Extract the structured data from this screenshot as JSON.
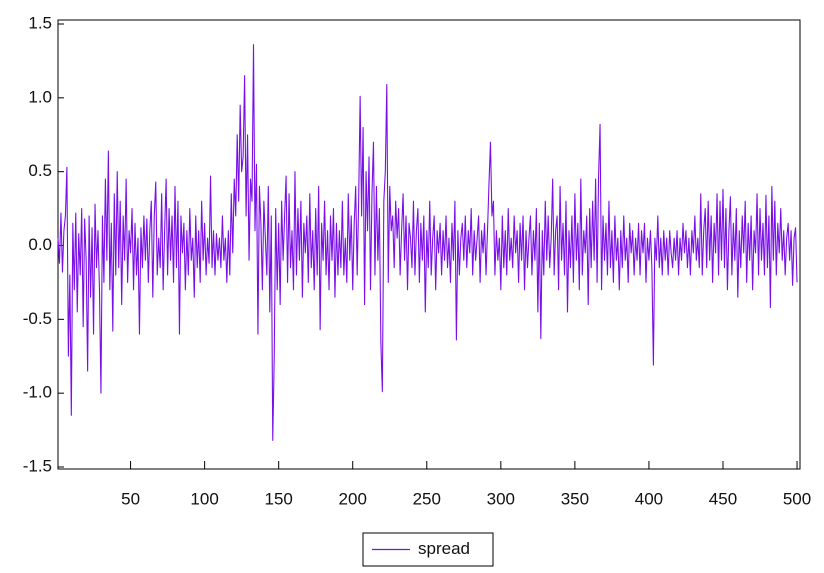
{
  "chart_data": {
    "type": "line",
    "x": [
      1,
      2,
      3,
      4,
      5,
      6,
      7,
      8,
      9,
      10,
      11,
      12,
      13,
      14,
      15,
      16,
      17,
      18,
      19,
      20,
      21,
      22,
      23,
      24,
      25,
      26,
      27,
      28,
      29,
      30,
      31,
      32,
      33,
      34,
      35,
      36,
      37,
      38,
      39,
      40,
      41,
      42,
      43,
      44,
      45,
      46,
      47,
      48,
      49,
      50,
      51,
      52,
      53,
      54,
      55,
      56,
      57,
      58,
      59,
      60,
      61,
      62,
      63,
      64,
      65,
      66,
      67,
      68,
      69,
      70,
      71,
      72,
      73,
      74,
      75,
      76,
      77,
      78,
      79,
      80,
      81,
      82,
      83,
      84,
      85,
      86,
      87,
      88,
      89,
      90,
      91,
      92,
      93,
      94,
      95,
      96,
      97,
      98,
      99,
      100,
      101,
      102,
      103,
      104,
      105,
      106,
      107,
      108,
      109,
      110,
      111,
      112,
      113,
      114,
      115,
      116,
      117,
      118,
      119,
      120,
      121,
      122,
      123,
      124,
      125,
      126,
      127,
      128,
      129,
      130,
      131,
      132,
      133,
      134,
      135,
      136,
      137,
      138,
      139,
      140,
      141,
      142,
      143,
      144,
      145,
      146,
      147,
      148,
      149,
      150,
      151,
      152,
      153,
      154,
      155,
      156,
      157,
      158,
      159,
      160,
      161,
      162,
      163,
      164,
      165,
      166,
      167,
      168,
      169,
      170,
      171,
      172,
      173,
      174,
      175,
      176,
      177,
      178,
      179,
      180,
      181,
      182,
      183,
      184,
      185,
      186,
      187,
      188,
      189,
      190,
      191,
      192,
      193,
      194,
      195,
      196,
      197,
      198,
      199,
      200,
      201,
      202,
      203,
      204,
      205,
      206,
      207,
      208,
      209,
      210,
      211,
      212,
      213,
      214,
      215,
      216,
      217,
      218,
      219,
      220,
      221,
      222,
      223,
      224,
      225,
      226,
      227,
      228,
      229,
      230,
      231,
      232,
      233,
      234,
      235,
      236,
      237,
      238,
      239,
      240,
      241,
      242,
      243,
      244,
      245,
      246,
      247,
      248,
      249,
      250,
      251,
      252,
      253,
      254,
      255,
      256,
      257,
      258,
      259,
      260,
      261,
      262,
      263,
      264,
      265,
      266,
      267,
      268,
      269,
      270,
      271,
      272,
      273,
      274,
      275,
      276,
      277,
      278,
      279,
      280,
      281,
      282,
      283,
      284,
      285,
      286,
      287,
      288,
      289,
      290,
      291,
      292,
      293,
      294,
      295,
      296,
      297,
      298,
      299,
      300,
      301,
      302,
      303,
      304,
      305,
      306,
      307,
      308,
      309,
      310,
      311,
      312,
      313,
      314,
      315,
      316,
      317,
      318,
      319,
      320,
      321,
      322,
      323,
      324,
      325,
      326,
      327,
      328,
      329,
      330,
      331,
      332,
      333,
      334,
      335,
      336,
      337,
      338,
      339,
      340,
      341,
      342,
      343,
      344,
      345,
      346,
      347,
      348,
      349,
      350,
      351,
      352,
      353,
      354,
      355,
      356,
      357,
      358,
      359,
      360,
      361,
      362,
      363,
      364,
      365,
      366,
      367,
      368,
      369,
      370,
      371,
      372,
      373,
      374,
      375,
      376,
      377,
      378,
      379,
      380,
      381,
      382,
      383,
      384,
      385,
      386,
      387,
      388,
      389,
      390,
      391,
      392,
      393,
      394,
      395,
      396,
      397,
      398,
      399,
      400,
      401,
      402,
      403,
      404,
      405,
      406,
      407,
      408,
      409,
      410,
      411,
      412,
      413,
      414,
      415,
      416,
      417,
      418,
      419,
      420,
      421,
      422,
      423,
      424,
      425,
      426,
      427,
      428,
      429,
      430,
      431,
      432,
      433,
      434,
      435,
      436,
      437,
      438,
      439,
      440,
      441,
      442,
      443,
      444,
      445,
      446,
      447,
      448,
      449,
      450,
      451,
      452,
      453,
      454,
      455,
      456,
      457,
      458,
      459,
      460,
      461,
      462,
      463,
      464,
      465,
      466,
      467,
      468,
      469,
      470,
      471,
      472,
      473,
      474,
      475,
      476,
      477,
      478,
      479,
      480,
      481,
      482,
      483,
      484,
      485,
      486,
      487,
      488,
      489,
      490,
      491,
      492,
      493,
      494,
      495,
      496,
      497,
      498,
      499,
      500
    ],
    "series": [
      {
        "name": "spread",
        "color": "#7a10e8",
        "values": [
          0.05,
          -0.12,
          0.22,
          -0.18,
          0.1,
          0.2,
          0.53,
          -0.75,
          -0.2,
          -1.15,
          0.15,
          -0.3,
          0.22,
          -0.45,
          0.08,
          -0.2,
          0.25,
          -0.55,
          0.18,
          -0.1,
          -0.85,
          0.2,
          -0.35,
          0.12,
          -0.6,
          0.28,
          -0.15,
          0.1,
          -0.3,
          -1.0,
          0.2,
          -0.25,
          0.45,
          -0.1,
          0.64,
          -0.3,
          0.15,
          -0.58,
          0.35,
          -0.2,
          0.5,
          -0.15,
          0.3,
          -0.4,
          0.2,
          -0.1,
          0.45,
          -0.25,
          0.1,
          -0.05,
          0.25,
          -0.3,
          0.15,
          -0.2,
          0.05,
          -0.6,
          0.12,
          -0.15,
          0.2,
          -0.1,
          0.18,
          -0.25,
          0.1,
          0.3,
          -0.35,
          0.2,
          0.43,
          -0.2,
          0.05,
          -0.15,
          0.35,
          -0.3,
          0.1,
          0.45,
          -0.2,
          0.25,
          -0.1,
          0.2,
          -0.25,
          0.4,
          -0.15,
          0.3,
          -0.6,
          0.2,
          -0.05,
          0.15,
          -0.3,
          0.1,
          -0.2,
          0.25,
          -0.1,
          0.05,
          -0.35,
          0.2,
          -0.15,
          0.1,
          -0.25,
          0.3,
          -0.1,
          0.15,
          -0.2,
          0.05,
          -0.12,
          0.47,
          -0.15,
          0.1,
          -0.2,
          0.08,
          -0.1,
          0.05,
          -0.15,
          0.2,
          -0.1,
          0.05,
          -0.25,
          0.1,
          -0.2,
          0.35,
          -0.05,
          0.45,
          0.2,
          0.75,
          0.3,
          0.95,
          0.5,
          0.6,
          1.15,
          0.2,
          0.75,
          -0.1,
          0.45,
          0.3,
          1.36,
          0.1,
          0.55,
          -0.6,
          0.4,
          0.15,
          -0.3,
          0.3,
          0.05,
          -0.2,
          0.4,
          -0.45,
          0.2,
          -1.32,
          -0.75,
          0.25,
          -0.3,
          0.15,
          -0.4,
          0.3,
          -0.1,
          0.2,
          0.47,
          -0.25,
          0.35,
          -0.15,
          0.1,
          -0.3,
          0.5,
          -0.2,
          0.25,
          -0.1,
          0.3,
          -0.35,
          0.15,
          -0.05,
          0.2,
          -0.25,
          0.35,
          -0.15,
          0.1,
          -0.3,
          0.25,
          -0.2,
          0.4,
          -0.57,
          0.15,
          -0.1,
          0.3,
          -0.2,
          0.1,
          -0.3,
          0.2,
          -0.1,
          0.25,
          -0.35,
          0.15,
          -0.2,
          0.1,
          -0.15,
          0.3,
          -0.2,
          0.05,
          -0.25,
          0.35,
          -0.1,
          0.2,
          -0.3,
          0.15,
          0.4,
          -0.2,
          0.3,
          1.01,
          0.2,
          0.8,
          -0.4,
          0.5,
          0.1,
          0.6,
          -0.3,
          0.35,
          0.7,
          -0.2,
          0.4,
          -0.1,
          0.25,
          -0.66,
          -0.99,
          0.3,
          0.5,
          1.09,
          -0.25,
          0.4,
          0.1,
          0.2,
          -0.15,
          0.3,
          0.05,
          0.25,
          -0.2,
          0.1,
          0.35,
          -0.1,
          0.2,
          -0.3,
          0.15,
          0.05,
          -0.15,
          0.3,
          -0.2,
          0.1,
          0.25,
          -0.25,
          0.15,
          -0.1,
          0.2,
          -0.45,
          0.1,
          -0.15,
          0.3,
          -0.2,
          0.05,
          0.2,
          -0.3,
          0.1,
          -0.05,
          0.15,
          -0.2,
          0.1,
          -0.1,
          0.2,
          -0.15,
          0.05,
          -0.25,
          0.15,
          -0.1,
          0.3,
          -0.64,
          0.1,
          -0.2,
          0.05,
          0.15,
          -0.1,
          0.2,
          -0.15,
          0.1,
          -0.05,
          0.25,
          -0.2,
          0.1,
          -0.1,
          0.05,
          0.2,
          -0.25,
          0.1,
          -0.05,
          0.15,
          -0.2,
          0.1,
          0.42,
          0.7,
          0.2,
          0.3,
          -0.2,
          0.1,
          -0.1,
          0.05,
          -0.3,
          0.2,
          -0.15,
          0.1,
          -0.2,
          0.25,
          -0.1,
          0.05,
          -0.15,
          0.2,
          -0.05,
          0.1,
          -0.25,
          0.15,
          -0.1,
          0.2,
          -0.3,
          0.1,
          -0.15,
          0.05,
          0.2,
          -0.2,
          0.1,
          -0.1,
          0.25,
          -0.45,
          0.15,
          -0.63,
          0.1,
          -0.2,
          0.3,
          -0.1,
          0.2,
          -0.15,
          0.05,
          0.45,
          -0.2,
          0.1,
          0.2,
          -0.3,
          0.4,
          -0.1,
          0.15,
          -0.2,
          0.3,
          -0.45,
          0.1,
          -0.15,
          0.2,
          -0.25,
          0.35,
          -0.1,
          0.15,
          -0.3,
          0.45,
          -0.2,
          0.1,
          -0.05,
          0.2,
          -0.4,
          0.25,
          -0.15,
          0.3,
          -0.1,
          0.45,
          -0.25,
          0.47,
          0.82,
          -0.3,
          0.2,
          -0.1,
          0.15,
          -0.2,
          0.3,
          -0.15,
          0.1,
          -0.25,
          0.2,
          -0.1,
          0.05,
          -0.3,
          0.1,
          -0.15,
          0.2,
          -0.1,
          0.05,
          -0.25,
          0.15,
          -0.05,
          0.1,
          -0.2,
          0.05,
          -0.1,
          0.15,
          -0.2,
          0.1,
          -0.05,
          0.15,
          -0.25,
          0.05,
          -0.1,
          0.1,
          -0.15,
          -0.81,
          0.05,
          -0.1,
          0.2,
          -0.15,
          0.05,
          -0.2,
          0.1,
          -0.1,
          0.05,
          -0.2,
          0.1,
          -0.05,
          -0.15,
          0.05,
          -0.1,
          0.1,
          -0.2,
          0.05,
          -0.1,
          0.15,
          -0.05,
          0.1,
          -0.15,
          0.05,
          -0.2,
          0.1,
          -0.05,
          0.2,
          -0.1,
          0.05,
          -0.15,
          0.35,
          -0.2,
          0.1,
          0.25,
          -0.15,
          0.3,
          -0.1,
          0.2,
          -0.25,
          0.15,
          -0.05,
          0.35,
          -0.2,
          0.3,
          -0.1,
          0.38,
          -0.15,
          0.25,
          -0.3,
          0.1,
          0.33,
          -0.2,
          0.15,
          -0.1,
          0.25,
          -0.35,
          0.1,
          -0.15,
          0.2,
          -0.05,
          0.3,
          -0.25,
          0.15,
          -0.1,
          0.2,
          -0.3,
          0.1,
          -0.05,
          0.35,
          -0.2,
          0.25,
          -0.1,
          0.15,
          -0.2,
          0.34,
          -0.15,
          0.2,
          -0.42,
          0.4,
          -0.1,
          0.3,
          -0.2,
          0.15,
          -0.05,
          0.25,
          -0.1,
          0.1,
          -0.2,
          0.05,
          0.15,
          -0.1,
          0.1,
          -0.27,
          0.05,
          0.12,
          -0.25
        ]
      }
    ],
    "xlim": [
      1,
      502
    ],
    "xticks": [
      50,
      100,
      150,
      200,
      250,
      300,
      350,
      400,
      450,
      500
    ],
    "ylim": [
      -1.5,
      1.5
    ],
    "yticks": [
      -1.5,
      {
        "value": -1.0,
        "label": "-1.0"
      },
      -0.5,
      {
        "value": 0,
        "label": "0.0"
      },
      0.5,
      {
        "value": 1.0,
        "label": "1.0"
      },
      1.5
    ],
    "grid": false,
    "legend": "bottom"
  }
}
